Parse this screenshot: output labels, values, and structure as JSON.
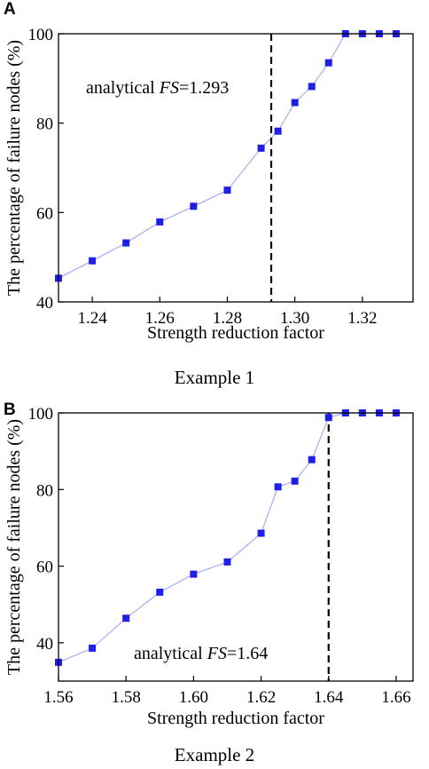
{
  "panels": [
    {
      "label": "A",
      "caption": "Example 1",
      "annotation_prefix": "analytical ",
      "annotation_fs": "FS",
      "annotation_value": "=1.293"
    },
    {
      "label": "B",
      "caption": "Example 2",
      "annotation_prefix": "analytical ",
      "annotation_fs": "FS",
      "annotation_value": "=1.64"
    }
  ],
  "colors": {
    "marker": "#1f1fe6",
    "line": "#a9a9f5",
    "dashed": "#000000"
  },
  "chart_data": [
    {
      "type": "line",
      "xlabel": "Strength reduction factor",
      "ylabel": "The percentage of failure nodes (%)",
      "xlim": [
        1.23,
        1.335
      ],
      "ylim": [
        40,
        100
      ],
      "xticks": [
        "1.24",
        "1.26",
        "1.28",
        "1.30",
        "1.32"
      ],
      "yticks": [
        "40",
        "60",
        "80",
        "100"
      ],
      "x": [
        1.23,
        1.24,
        1.25,
        1.26,
        1.27,
        1.28,
        1.29,
        1.295,
        1.3,
        1.305,
        1.31,
        1.315,
        1.32,
        1.325,
        1.33
      ],
      "y": [
        45.3,
        49.2,
        53.2,
        57.9,
        61.4,
        65.0,
        74.4,
        78.2,
        84.6,
        88.2,
        93.5,
        100,
        100,
        100,
        100
      ],
      "vline": 1.293
    },
    {
      "type": "line",
      "xlabel": "Strength reduction factor",
      "ylabel": "The percentage of failure nodes (%)",
      "xlim": [
        1.56,
        1.665
      ],
      "ylim": [
        30,
        100
      ],
      "xticks": [
        "1.56",
        "1.58",
        "1.60",
        "1.62",
        "1.64",
        "1.66"
      ],
      "yticks": [
        "40",
        "60",
        "80",
        "100"
      ],
      "x": [
        1.56,
        1.57,
        1.58,
        1.59,
        1.6,
        1.61,
        1.62,
        1.625,
        1.63,
        1.635,
        1.64,
        1.645,
        1.65,
        1.655,
        1.66
      ],
      "y": [
        34.9,
        38.6,
        46.4,
        53.2,
        57.9,
        61.1,
        68.6,
        80.7,
        82.2,
        87.8,
        98.8,
        100,
        100,
        100,
        100
      ],
      "vline": 1.64
    }
  ]
}
